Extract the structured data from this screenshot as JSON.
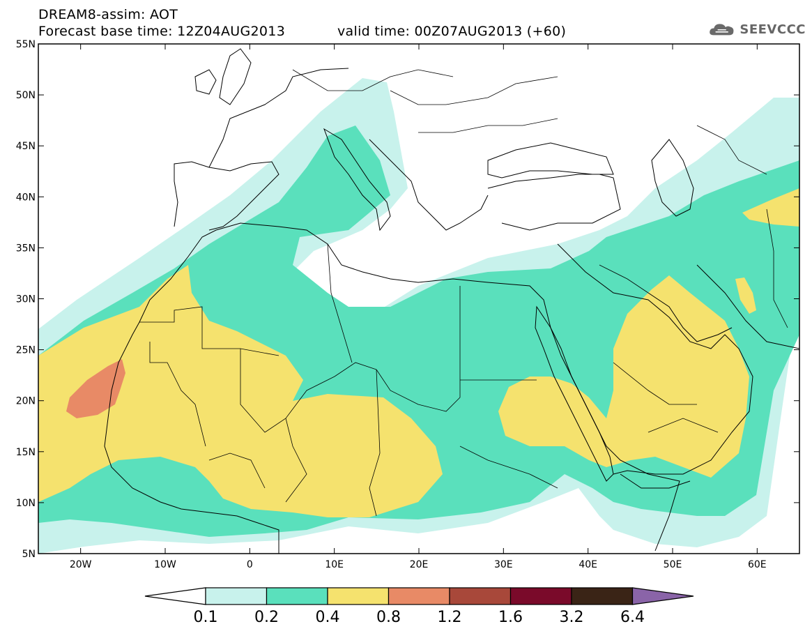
{
  "header": {
    "title": "DREAM8-assim: AOT",
    "base_time": "Forecast base time: 12Z04AUG2013",
    "valid_time": "valid time: 00Z07AUG2013 (+60)",
    "logo_text": "SEEVCCC"
  },
  "map": {
    "lon_range": [
      -25,
      65
    ],
    "lat_range": [
      5,
      55
    ],
    "lat_labels": [
      {
        "label": "55N",
        "lat": 55
      },
      {
        "label": "50N",
        "lat": 50
      },
      {
        "label": "45N",
        "lat": 45
      },
      {
        "label": "40N",
        "lat": 40
      },
      {
        "label": "35N",
        "lat": 35
      },
      {
        "label": "30N",
        "lat": 30
      },
      {
        "label": "25N",
        "lat": 25
      },
      {
        "label": "20N",
        "lat": 20
      },
      {
        "label": "15N",
        "lat": 15
      },
      {
        "label": "10N",
        "lat": 10
      },
      {
        "label": "5N",
        "lat": 5
      }
    ],
    "lon_labels": [
      {
        "label": "20W",
        "lon": -20
      },
      {
        "label": "10W",
        "lon": -10
      },
      {
        "label": "0",
        "lon": 0
      },
      {
        "label": "10E",
        "lon": 10
      },
      {
        "label": "20E",
        "lon": 20
      },
      {
        "label": "30E",
        "lon": 30
      },
      {
        "label": "40E",
        "lon": 40
      },
      {
        "label": "50E",
        "lon": 50
      },
      {
        "label": "60E",
        "lon": 60
      }
    ]
  },
  "colorbar": {
    "levels": [
      "0.1",
      "0.2",
      "0.4",
      "0.8",
      "1.2",
      "1.6",
      "3.2",
      "6.4"
    ],
    "colors": [
      "#c8f2ec",
      "#5ae0bc",
      "#f5e26e",
      "#e88a66",
      "#a8483a",
      "#7a0a2a",
      "#3a2416",
      "#8a64a8"
    ]
  },
  "colors": {
    "aot_0_1": "#c8f2ec",
    "aot_0_2": "#5ae0bc",
    "aot_0_4": "#f5e26e",
    "aot_0_8": "#e88a66"
  }
}
